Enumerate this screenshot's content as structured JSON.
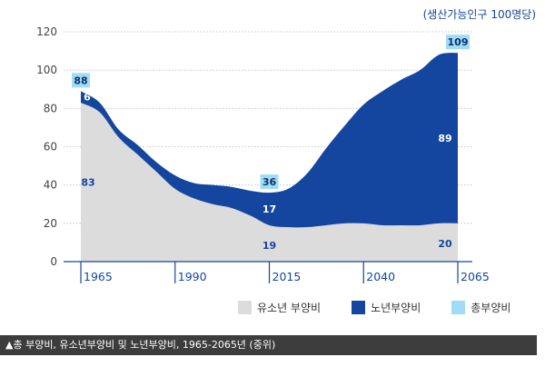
{
  "unit_note": "(생산가능인구 100명당)",
  "caption": "▲총 부양비, 유소년부양비 및 노년부양비, 1965-2065년 (중위)",
  "colors": {
    "youth": "#dcdcdc",
    "elderly": "#1446a0",
    "total": "#9fdcf5",
    "axis": "#1446a0"
  },
  "chart_data": {
    "type": "area",
    "stacked": true,
    "x": [
      1965,
      1970,
      1975,
      1980,
      1985,
      1990,
      1995,
      2000,
      2005,
      2010,
      2015,
      2020,
      2025,
      2030,
      2035,
      2040,
      2045,
      2050,
      2055,
      2060,
      2065
    ],
    "series": [
      {
        "name": "유소년 부양비",
        "values": [
          83,
          78,
          65,
          56,
          47,
          38,
          33,
          30,
          28,
          24,
          19,
          18,
          18,
          19,
          20,
          20,
          19,
          19,
          19,
          20,
          20
        ]
      },
      {
        "name": "노년부양비",
        "values": [
          6,
          5,
          4,
          5,
          5,
          7,
          8,
          10,
          11,
          13,
          17,
          20,
          28,
          40,
          51,
          62,
          70,
          76,
          81,
          88,
          89
        ]
      }
    ],
    "totals_label": "총부양비",
    "xticks": [
      "1965",
      "1990",
      "2015",
      "2040",
      "2065"
    ],
    "yticks": [
      "0",
      "20",
      "40",
      "60",
      "80",
      "100",
      "120"
    ],
    "ylim": [
      0,
      120
    ],
    "data_labels": {
      "total": [
        {
          "x": 1965,
          "text": "88"
        },
        {
          "x": 2015,
          "text": "36"
        },
        {
          "x": 2065,
          "text": "109"
        }
      ],
      "elderly": [
        {
          "x": 1965,
          "text": "6"
        },
        {
          "x": 2015,
          "text": "17"
        },
        {
          "x": 2065,
          "text": "89"
        }
      ],
      "youth": [
        {
          "x": 1965,
          "text": "83"
        },
        {
          "x": 2015,
          "text": "19"
        },
        {
          "x": 2065,
          "text": "20"
        }
      ]
    },
    "legend": [
      "유소년 부양비",
      "노년부양비",
      "총부양비"
    ],
    "legend_position": "bottom-right",
    "grid": true
  }
}
